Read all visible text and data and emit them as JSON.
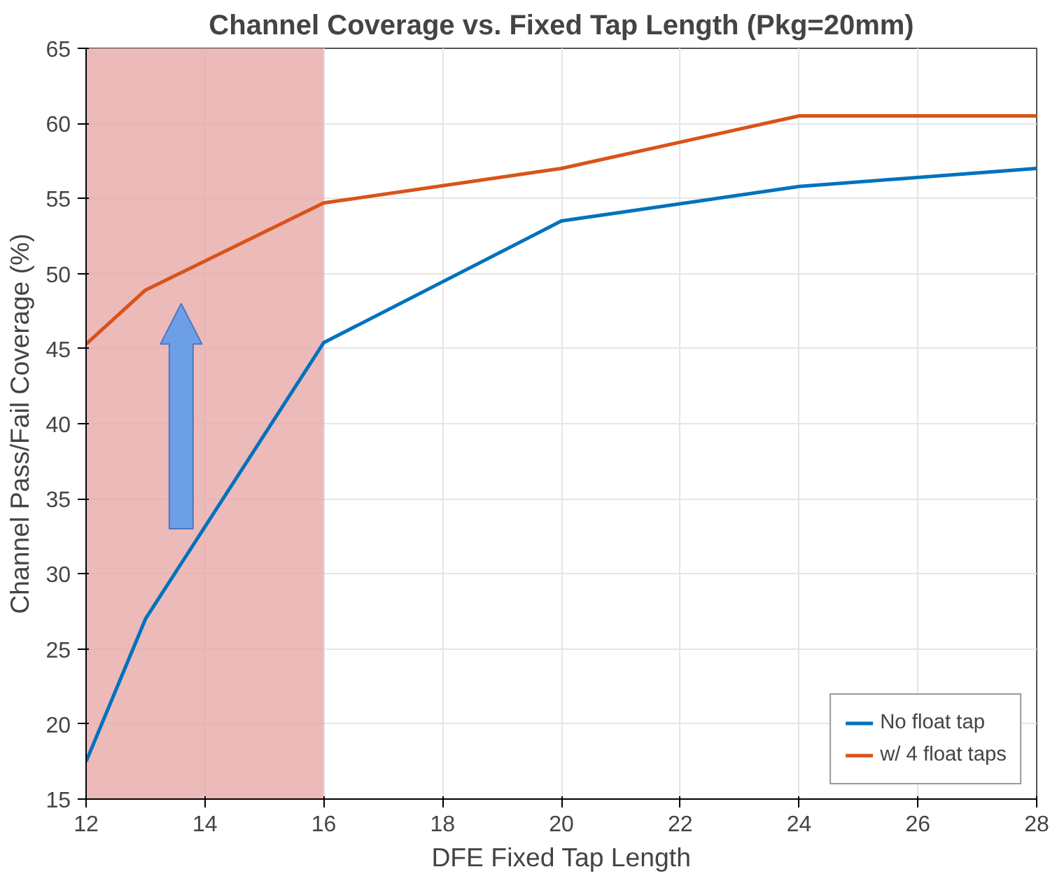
{
  "chart_data": {
    "type": "line",
    "title": "Channel Coverage vs. Fixed Tap Length (Pkg=20mm)",
    "xlabel": "DFE Fixed Tap Length",
    "ylabel": "Channel Pass/Fail Coverage (%)",
    "x": [
      12,
      13,
      16,
      20,
      24,
      28
    ],
    "series": [
      {
        "name": "No float tap",
        "color": "#0072bd",
        "values": [
          17.5,
          27.0,
          45.4,
          53.5,
          55.8,
          57.0
        ]
      },
      {
        "name": "w/ 4 float taps",
        "color": "#d95319",
        "values": [
          45.3,
          48.9,
          54.7,
          57.0,
          60.5,
          60.5
        ]
      }
    ],
    "xlim": [
      12,
      28
    ],
    "xticks": [
      12,
      14,
      16,
      18,
      20,
      22,
      24,
      26,
      28
    ],
    "ylim": [
      15,
      65
    ],
    "yticks": [
      15,
      20,
      25,
      30,
      35,
      40,
      45,
      50,
      55,
      60,
      65
    ],
    "bands": [
      {
        "axis": "x",
        "from": 12,
        "to": 16,
        "color": "#e9a9a9"
      }
    ],
    "grid": true,
    "legend": "bottom right",
    "marker": "none",
    "line_style": "solid"
  }
}
